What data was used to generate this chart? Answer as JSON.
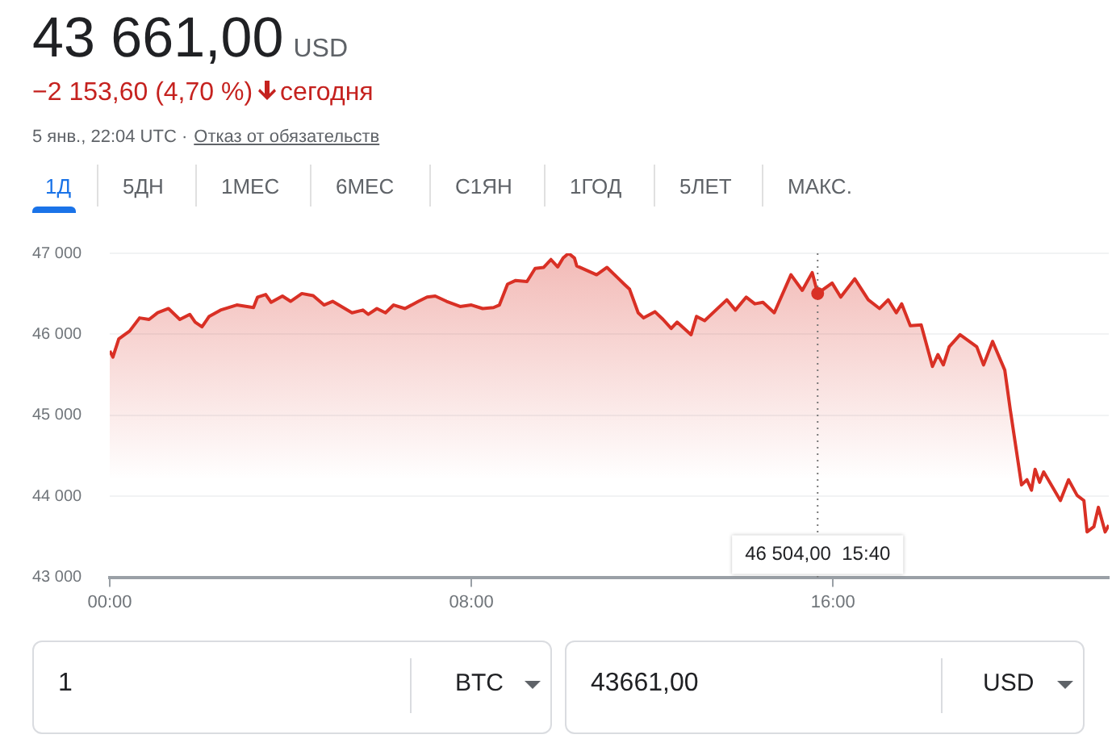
{
  "chart_data": {
    "type": "area",
    "title": "43 661,00",
    "subtitle": "−2 153,60 (4,70 %)",
    "annotations": [
      "46 504,00  15:40",
      "USD",
      "сегодня",
      "5 янв., 22:04 UTC ·",
      "Отказ от обязательств",
      "1Д",
      "5ДН",
      "1МЕС",
      "6МЕС",
      "С1ЯН",
      "1ГОД",
      "5ЛЕТ",
      "МАКС.",
      "1",
      "BTC",
      "43661,00",
      "USD"
    ],
    "x": [
      0,
      0.07,
      0.2,
      0.44,
      0.66,
      0.87,
      1.06,
      1.3,
      1.55,
      1.77,
      1.89,
      2.04,
      2.2,
      2.45,
      2.81,
      3.18,
      3.27,
      3.45,
      3.57,
      3.82,
      4.0,
      4.25,
      4.5,
      4.74,
      4.93,
      5.36,
      5.6,
      5.72,
      5.91,
      6.1,
      6.28,
      6.53,
      6.83,
      7.02,
      7.2,
      7.45,
      7.75,
      8.0,
      8.25,
      8.49,
      8.62,
      8.8,
      8.98,
      9.23,
      9.41,
      9.6,
      9.76,
      9.91,
      10.03,
      10.15,
      10.28,
      10.33,
      10.77,
      11.0,
      11.38,
      11.5,
      11.69,
      11.81,
      12.06,
      12.24,
      12.42,
      12.55,
      12.86,
      12.98,
      13.16,
      13.65,
      13.84,
      14.08,
      14.27,
      14.45,
      14.7,
      15.07,
      15.32,
      15.54,
      15.66,
      15.98,
      16.17,
      16.48,
      16.78,
      17.03,
      17.22,
      17.4,
      17.52,
      17.71,
      17.95,
      18.2,
      18.32,
      18.44,
      18.57,
      18.81,
      19.18,
      19.33,
      19.53,
      19.8,
      19.92,
      20.17,
      20.29,
      20.39,
      20.47,
      20.57,
      20.66,
      21.03,
      21.21,
      21.4,
      21.55,
      21.62,
      21.77,
      21.87,
      22.02,
      22.1
    ],
    "series": [
      {
        "color": "#d93025",
        "values": [
          45796,
          45719,
          45943,
          46040,
          46202,
          46183,
          46266,
          46318,
          46183,
          46246,
          46150,
          46092,
          46221,
          46299,
          46362,
          46330,
          46459,
          46491,
          46395,
          46472,
          46407,
          46503,
          46478,
          46362,
          46407,
          46266,
          46299,
          46246,
          46318,
          46266,
          46362,
          46318,
          46407,
          46459,
          46472,
          46407,
          46343,
          46362,
          46318,
          46330,
          46362,
          46619,
          46665,
          46652,
          46813,
          46826,
          46923,
          46832,
          46942,
          47000,
          46942,
          46845,
          46735,
          46826,
          46619,
          46556,
          46266,
          46202,
          46279,
          46183,
          46072,
          46150,
          45995,
          46221,
          46169,
          46426,
          46299,
          46459,
          46376,
          46395,
          46266,
          46735,
          46542,
          46762,
          46504,
          46633,
          46459,
          46685,
          46426,
          46318,
          46426,
          46266,
          46376,
          46105,
          46117,
          45603,
          45750,
          45622,
          45846,
          45995,
          45846,
          45622,
          45912,
          45557,
          45073,
          44140,
          44204,
          44076,
          44333,
          44173,
          44300,
          43947,
          44204,
          44011,
          43947,
          43560,
          43624,
          43864,
          43560,
          43643
        ]
      }
    ],
    "xlim": [
      0,
      22.1
    ],
    "xticks": [
      {
        "value": 0,
        "label": "00:00"
      },
      {
        "value": 8,
        "label": "08:00"
      },
      {
        "value": 16,
        "label": "16:00"
      }
    ],
    "ylim": [
      43000,
      47000
    ],
    "yticks": [
      {
        "value": 43000,
        "label": "43 000"
      },
      {
        "value": 44000,
        "label": "44 000"
      },
      {
        "value": 45000,
        "label": "45 000"
      },
      {
        "value": 46000,
        "label": "46 000"
      },
      {
        "value": 47000,
        "label": "47 000"
      }
    ],
    "ref_lines": [
      {
        "axis": "x",
        "value": 15.66,
        "line_style": "dotted",
        "color": "#777777"
      }
    ],
    "grid": "y",
    "legend": false,
    "marker": "none",
    "line_style": "solid"
  }
}
